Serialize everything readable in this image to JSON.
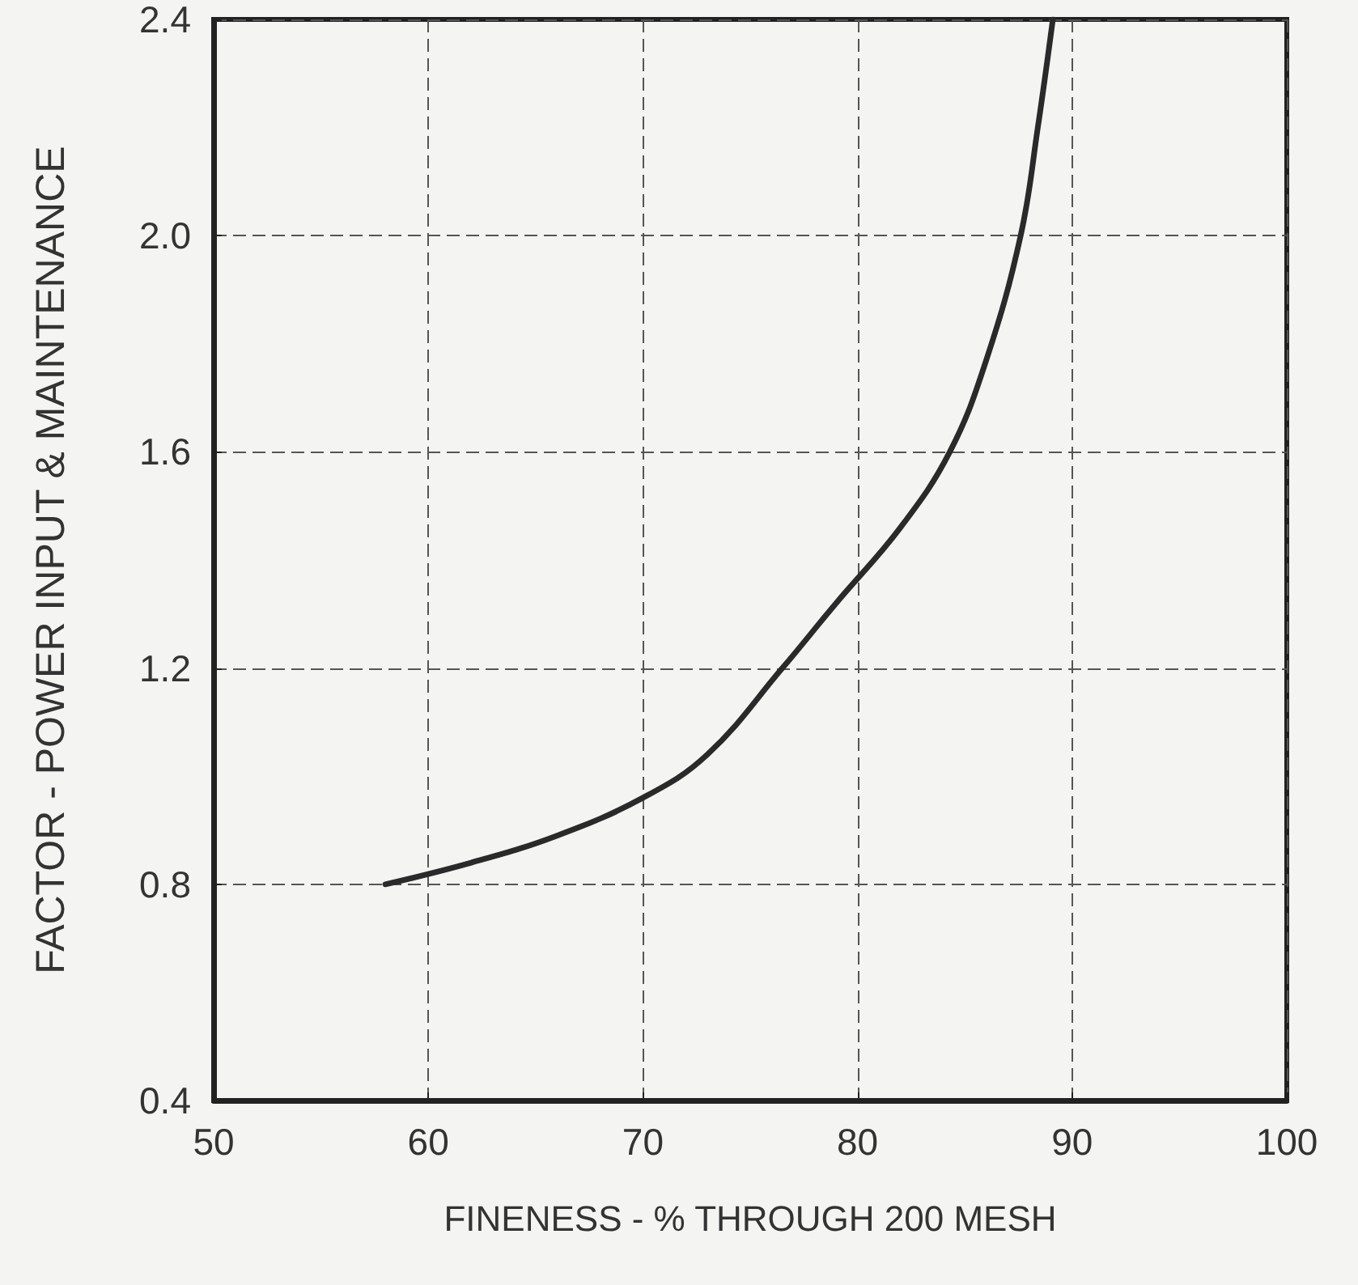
{
  "chart_data": {
    "type": "line",
    "xlabel": "FINENESS - % THROUGH 200 MESH",
    "ylabel": "FACTOR - POWER INPUT & MAINTENANCE",
    "series": [
      {
        "color": "#2a2a2a",
        "x": [
          58,
          62,
          66,
          70,
          73,
          76.5,
          79,
          82,
          84.3,
          86,
          87.6,
          88.4,
          89.1
        ],
        "values": [
          0.8,
          0.84,
          0.89,
          0.96,
          1.04,
          1.2,
          1.32,
          1.46,
          1.6,
          1.77,
          2.0,
          2.2,
          2.4
        ]
      }
    ],
    "xlim": [
      50,
      100
    ],
    "xticks": [
      50,
      60,
      70,
      80,
      90,
      100
    ],
    "ylim": [
      0.4,
      2.4
    ],
    "yticks": [
      {
        "value": 0.4,
        "label": "0.4"
      },
      {
        "value": 0.8,
        "label": "0.8"
      },
      {
        "value": 1.2,
        "label": "1.2"
      },
      {
        "value": 1.6,
        "label": "1.6"
      },
      {
        "value": 2.0,
        "label": "2.0"
      },
      {
        "value": 2.4,
        "label": "2.4"
      }
    ],
    "grid": true,
    "marker": "none",
    "line_style": "solid"
  }
}
